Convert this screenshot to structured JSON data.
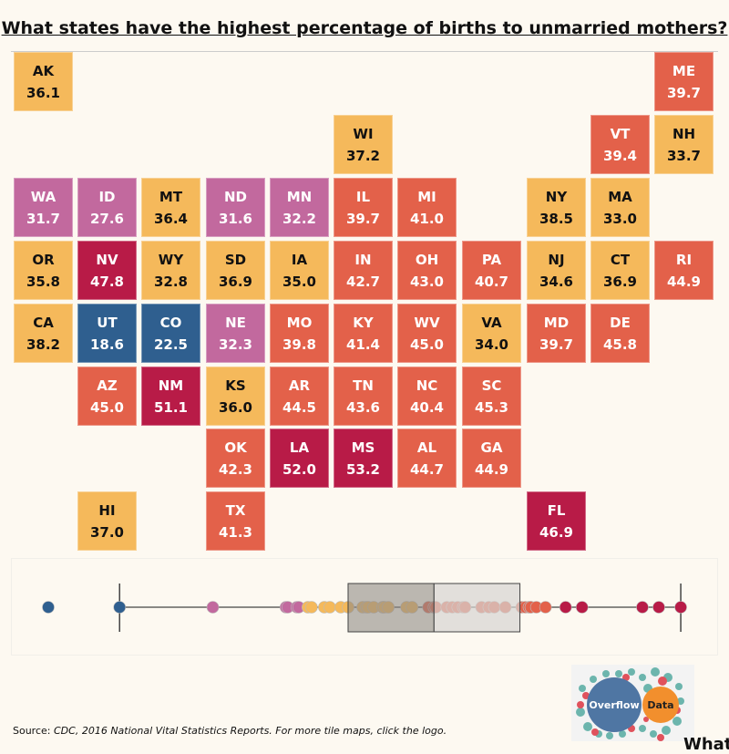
{
  "title": "What states have the highest percentage of births to unmarried mothers?",
  "palette": {
    "blue": "#2f5f8f",
    "pink": "#c2699e",
    "yellow": "#f5b95b",
    "orange": "#e3614a",
    "red": "#b81b47"
  },
  "chart_data": {
    "type": "tile-map",
    "states": [
      {
        "abbr": "AK",
        "value": 36.1,
        "row": 0,
        "col": 0,
        "c": "yellow"
      },
      {
        "abbr": "ME",
        "value": 39.7,
        "row": 0,
        "col": 10,
        "c": "orange"
      },
      {
        "abbr": "WI",
        "value": 37.2,
        "row": 1,
        "col": 5,
        "c": "yellow"
      },
      {
        "abbr": "VT",
        "value": 39.4,
        "row": 1,
        "col": 9,
        "c": "orange"
      },
      {
        "abbr": "NH",
        "value": 33.7,
        "row": 1,
        "col": 10,
        "c": "yellow"
      },
      {
        "abbr": "WA",
        "value": 31.7,
        "row": 2,
        "col": 0,
        "c": "pink"
      },
      {
        "abbr": "ID",
        "value": 27.6,
        "row": 2,
        "col": 1,
        "c": "pink"
      },
      {
        "abbr": "MT",
        "value": 36.4,
        "row": 2,
        "col": 2,
        "c": "yellow"
      },
      {
        "abbr": "ND",
        "value": 31.6,
        "row": 2,
        "col": 3,
        "c": "pink"
      },
      {
        "abbr": "MN",
        "value": 32.2,
        "row": 2,
        "col": 4,
        "c": "pink"
      },
      {
        "abbr": "IL",
        "value": 39.7,
        "row": 2,
        "col": 5,
        "c": "orange"
      },
      {
        "abbr": "MI",
        "value": 41.0,
        "row": 2,
        "col": 6,
        "c": "orange"
      },
      {
        "abbr": "NY",
        "value": 38.5,
        "row": 2,
        "col": 8,
        "c": "yellow"
      },
      {
        "abbr": "MA",
        "value": 33.0,
        "row": 2,
        "col": 9,
        "c": "yellow"
      },
      {
        "abbr": "OR",
        "value": 35.8,
        "row": 3,
        "col": 0,
        "c": "yellow"
      },
      {
        "abbr": "NV",
        "value": 47.8,
        "row": 3,
        "col": 1,
        "c": "red"
      },
      {
        "abbr": "WY",
        "value": 32.8,
        "row": 3,
        "col": 2,
        "c": "yellow"
      },
      {
        "abbr": "SD",
        "value": 36.9,
        "row": 3,
        "col": 3,
        "c": "yellow"
      },
      {
        "abbr": "IA",
        "value": 35.0,
        "row": 3,
        "col": 4,
        "c": "yellow"
      },
      {
        "abbr": "IN",
        "value": 42.7,
        "row": 3,
        "col": 5,
        "c": "orange"
      },
      {
        "abbr": "OH",
        "value": 43.0,
        "row": 3,
        "col": 6,
        "c": "orange"
      },
      {
        "abbr": "PA",
        "value": 40.7,
        "row": 3,
        "col": 7,
        "c": "orange"
      },
      {
        "abbr": "NJ",
        "value": 34.6,
        "row": 3,
        "col": 8,
        "c": "yellow"
      },
      {
        "abbr": "CT",
        "value": 36.9,
        "row": 3,
        "col": 9,
        "c": "yellow"
      },
      {
        "abbr": "RI",
        "value": 44.9,
        "row": 3,
        "col": 10,
        "c": "orange"
      },
      {
        "abbr": "CA",
        "value": 38.2,
        "row": 4,
        "col": 0,
        "c": "yellow"
      },
      {
        "abbr": "UT",
        "value": 18.6,
        "row": 4,
        "col": 1,
        "c": "blue"
      },
      {
        "abbr": "CO",
        "value": 22.5,
        "row": 4,
        "col": 2,
        "c": "blue"
      },
      {
        "abbr": "NE",
        "value": 32.3,
        "row": 4,
        "col": 3,
        "c": "pink"
      },
      {
        "abbr": "MO",
        "value": 39.8,
        "row": 4,
        "col": 4,
        "c": "orange"
      },
      {
        "abbr": "KY",
        "value": 41.4,
        "row": 4,
        "col": 5,
        "c": "orange"
      },
      {
        "abbr": "WV",
        "value": 45.0,
        "row": 4,
        "col": 6,
        "c": "orange"
      },
      {
        "abbr": "VA",
        "value": 34.0,
        "row": 4,
        "col": 7,
        "c": "yellow"
      },
      {
        "abbr": "MD",
        "value": 39.7,
        "row": 4,
        "col": 8,
        "c": "orange"
      },
      {
        "abbr": "DE",
        "value": 45.8,
        "row": 4,
        "col": 9,
        "c": "orange"
      },
      {
        "abbr": "AZ",
        "value": 45.0,
        "row": 5,
        "col": 1,
        "c": "orange"
      },
      {
        "abbr": "NM",
        "value": 51.1,
        "row": 5,
        "col": 2,
        "c": "red"
      },
      {
        "abbr": "KS",
        "value": 36.0,
        "row": 5,
        "col": 3,
        "c": "yellow"
      },
      {
        "abbr": "AR",
        "value": 44.5,
        "row": 5,
        "col": 4,
        "c": "orange"
      },
      {
        "abbr": "TN",
        "value": 43.6,
        "row": 5,
        "col": 5,
        "c": "orange"
      },
      {
        "abbr": "NC",
        "value": 40.4,
        "row": 5,
        "col": 6,
        "c": "orange"
      },
      {
        "abbr": "SC",
        "value": 45.3,
        "row": 5,
        "col": 7,
        "c": "orange"
      },
      {
        "abbr": "OK",
        "value": 42.3,
        "row": 6,
        "col": 3,
        "c": "orange"
      },
      {
        "abbr": "LA",
        "value": 52.0,
        "row": 6,
        "col": 4,
        "c": "red"
      },
      {
        "abbr": "MS",
        "value": 53.2,
        "row": 6,
        "col": 5,
        "c": "red"
      },
      {
        "abbr": "AL",
        "value": 44.7,
        "row": 6,
        "col": 6,
        "c": "orange"
      },
      {
        "abbr": "GA",
        "value": 44.9,
        "row": 6,
        "col": 7,
        "c": "orange"
      },
      {
        "abbr": "HI",
        "value": 37.0,
        "row": 7,
        "col": 1,
        "c": "yellow"
      },
      {
        "abbr": "TX",
        "value": 41.3,
        "row": 7,
        "col": 3,
        "c": "orange"
      },
      {
        "abbr": "FL",
        "value": 46.9,
        "row": 7,
        "col": 8,
        "c": "red"
      }
    ],
    "boxplot": {
      "whisker_low": 22.5,
      "q1": 35.0,
      "median": 39.7,
      "q3": 44.4,
      "whisker_high": 53.2
    }
  },
  "source": {
    "label": "Source:",
    "text": "CDC, 2016  National Vital Statistics Reports. For more tile maps, click the logo."
  },
  "logo": {
    "word1": "Overflow",
    "word2": "Data"
  },
  "overflow_text": "What"
}
